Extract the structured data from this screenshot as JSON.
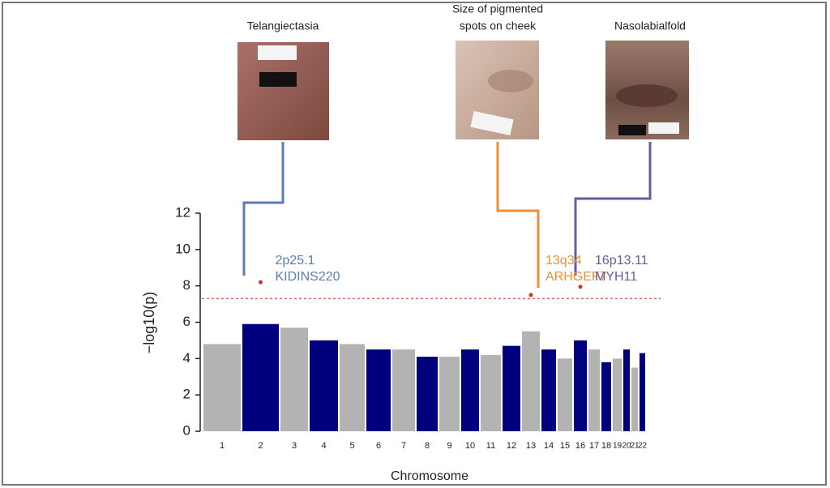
{
  "chart_data": {
    "type": "manhattan",
    "y_label": "−log10(p)",
    "x_label": "Chromosome",
    "categories": [
      "1",
      "2",
      "3",
      "4",
      "5",
      "6",
      "7",
      "8",
      "9",
      "10",
      "11",
      "12",
      "13",
      "14",
      "15",
      "16",
      "17",
      "18",
      "19",
      "20",
      "21",
      "22"
    ],
    "values": [
      4.8,
      5.9,
      5.7,
      5.0,
      4.8,
      4.5,
      4.5,
      4.1,
      4.1,
      4.5,
      4.2,
      4.7,
      5.5,
      4.5,
      4.0,
      5.0,
      4.5,
      3.8,
      4.0,
      4.5,
      3.5,
      4.3
    ],
    "colors": [
      "#b3b3b3",
      "#00007f"
    ],
    "ylim": [
      0,
      12
    ],
    "yticks": [
      0,
      2,
      4,
      6,
      8,
      10,
      12
    ],
    "threshold": 7.3,
    "threshold_color": "#e06060",
    "hit_color": "#c0392b",
    "hits": [
      {
        "chromosome": "2",
        "value": 8.2,
        "trait": [
          "Telangiectasia"
        ],
        "locus": "2p25.1",
        "gene": "KIDINS220",
        "color": "#5b7db5"
      },
      {
        "chromosome": "13",
        "value": 7.5,
        "trait": [
          "Size of pigmented",
          "spots on cheek"
        ],
        "locus": "13q34",
        "gene": "ARHGEF7",
        "color": "#e8903a"
      },
      {
        "chromosome": "16",
        "value": 7.95,
        "trait": [
          "Nasolabialfold"
        ],
        "locus": "16p13.11",
        "gene": "MYH11",
        "color": "#6b5a9e"
      }
    ]
  }
}
